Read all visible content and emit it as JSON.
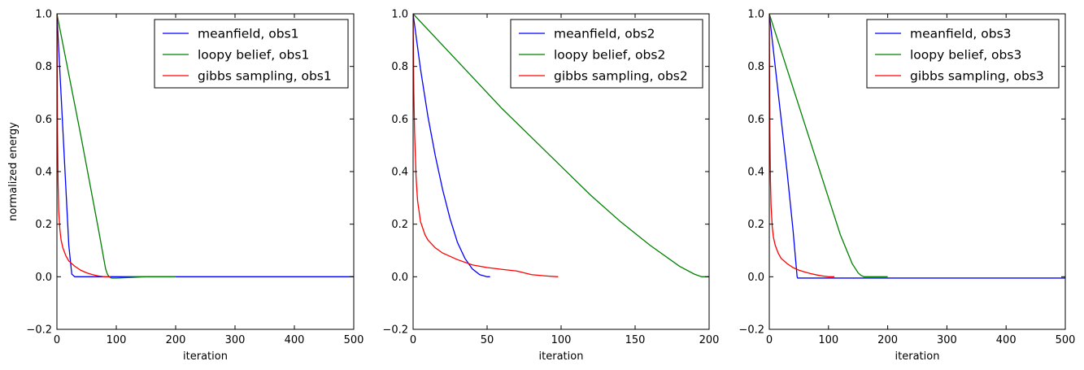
{
  "chart_data": [
    {
      "type": "line",
      "xlabel": "iteration",
      "ylabel": "normalized energy",
      "xlim": [
        0,
        500
      ],
      "ylim": [
        -0.2,
        1.0
      ],
      "xticks": [
        "0",
        "100",
        "200",
        "300",
        "400",
        "500"
      ],
      "yticks": [
        "−0.2",
        "0.0",
        "0.2",
        "0.4",
        "0.6",
        "0.8",
        "1.0"
      ],
      "grid": false,
      "legend_position": "top-right",
      "series": [
        {
          "name": "meanfield, obs1",
          "color": "#0000ff",
          "x": [
            0,
            5,
            10,
            15,
            20,
            25,
            30,
            40,
            60,
            100,
            200,
            300,
            400,
            500
          ],
          "y": [
            1.0,
            0.78,
            0.56,
            0.34,
            0.12,
            0.01,
            0.0,
            0.0,
            0.0,
            0.0,
            0.0,
            0.0,
            0.0,
            0.0
          ]
        },
        {
          "name": "loopy belief, obs1",
          "color": "#008000",
          "x": [
            0,
            20,
            40,
            60,
            70,
            78,
            82,
            85,
            88,
            92,
            100,
            120,
            150,
            200
          ],
          "y": [
            1.0,
            0.77,
            0.54,
            0.3,
            0.18,
            0.08,
            0.03,
            0.01,
            0.0,
            -0.005,
            -0.005,
            -0.003,
            0.0,
            0.0
          ]
        },
        {
          "name": "gibbs sampling, obs1",
          "color": "#ff0000",
          "x": [
            0,
            1,
            2,
            3,
            5,
            7,
            10,
            15,
            20,
            30,
            40,
            50,
            60,
            70,
            80,
            90
          ],
          "y": [
            1.0,
            0.55,
            0.35,
            0.25,
            0.18,
            0.14,
            0.11,
            0.08,
            0.06,
            0.04,
            0.025,
            0.015,
            0.008,
            0.003,
            0.0,
            0.0
          ]
        }
      ]
    },
    {
      "type": "line",
      "xlabel": "iteration",
      "ylabel": "",
      "xlim": [
        0,
        200
      ],
      "ylim": [
        -0.2,
        1.0
      ],
      "xticks": [
        "0",
        "50",
        "100",
        "150",
        "200"
      ],
      "yticks": [
        "−0.2",
        "0.0",
        "0.2",
        "0.4",
        "0.6",
        "0.8",
        "1.0"
      ],
      "grid": false,
      "legend_position": "top-right",
      "series": [
        {
          "name": "meanfield, obs2",
          "color": "#0000ff",
          "x": [
            0,
            5,
            10,
            15,
            20,
            25,
            30,
            35,
            40,
            45,
            50,
            52
          ],
          "y": [
            1.0,
            0.79,
            0.61,
            0.46,
            0.33,
            0.22,
            0.13,
            0.07,
            0.03,
            0.008,
            0.0,
            0.0
          ]
        },
        {
          "name": "loopy belief, obs2",
          "color": "#008000",
          "x": [
            0,
            20,
            40,
            60,
            80,
            100,
            120,
            140,
            160,
            180,
            190,
            195,
            200
          ],
          "y": [
            1.0,
            0.88,
            0.76,
            0.64,
            0.53,
            0.42,
            0.31,
            0.21,
            0.12,
            0.04,
            0.01,
            0.0,
            0.0
          ]
        },
        {
          "name": "gibbs sampling, obs2",
          "color": "#ff0000",
          "x": [
            0,
            0.5,
            1,
            2,
            3,
            5,
            8,
            10,
            15,
            20,
            30,
            40,
            50,
            60,
            70,
            75,
            80,
            90,
            98
          ],
          "y": [
            1.0,
            0.7,
            0.55,
            0.38,
            0.29,
            0.21,
            0.16,
            0.14,
            0.11,
            0.09,
            0.065,
            0.045,
            0.035,
            0.028,
            0.022,
            0.015,
            0.008,
            0.003,
            0.0
          ]
        }
      ]
    },
    {
      "type": "line",
      "xlabel": "iteration",
      "ylabel": "",
      "xlim": [
        0,
        500
      ],
      "ylim": [
        -0.2,
        1.0
      ],
      "xticks": [
        "0",
        "100",
        "200",
        "300",
        "400",
        "500"
      ],
      "yticks": [
        "−0.2",
        "0.0",
        "0.2",
        "0.4",
        "0.6",
        "0.8",
        "1.0"
      ],
      "grid": false,
      "legend_position": "top-right",
      "series": [
        {
          "name": "meanfield, obs3",
          "color": "#0000ff",
          "x": [
            0,
            5,
            10,
            20,
            30,
            40,
            47,
            48,
            100,
            200,
            300,
            400,
            500
          ],
          "y": [
            1.0,
            0.9,
            0.8,
            0.6,
            0.4,
            0.18,
            0.0,
            -0.005,
            -0.005,
            -0.005,
            -0.005,
            -0.005,
            -0.005
          ]
        },
        {
          "name": "loopy belief, obs3",
          "color": "#008000",
          "x": [
            0,
            20,
            40,
            60,
            80,
            100,
            120,
            140,
            150,
            155,
            160,
            170,
            200
          ],
          "y": [
            1.0,
            0.86,
            0.72,
            0.58,
            0.44,
            0.3,
            0.16,
            0.05,
            0.015,
            0.005,
            0.0,
            0.0,
            0.0
          ]
        },
        {
          "name": "gibbs sampling, obs3",
          "color": "#ff0000",
          "x": [
            0,
            1,
            2,
            3,
            5,
            7,
            10,
            15,
            20,
            30,
            40,
            50,
            60,
            70,
            80,
            90,
            100,
            110
          ],
          "y": [
            1.0,
            0.55,
            0.36,
            0.27,
            0.19,
            0.15,
            0.12,
            0.09,
            0.07,
            0.05,
            0.035,
            0.025,
            0.018,
            0.012,
            0.007,
            0.003,
            0.0,
            0.0
          ]
        }
      ]
    }
  ]
}
